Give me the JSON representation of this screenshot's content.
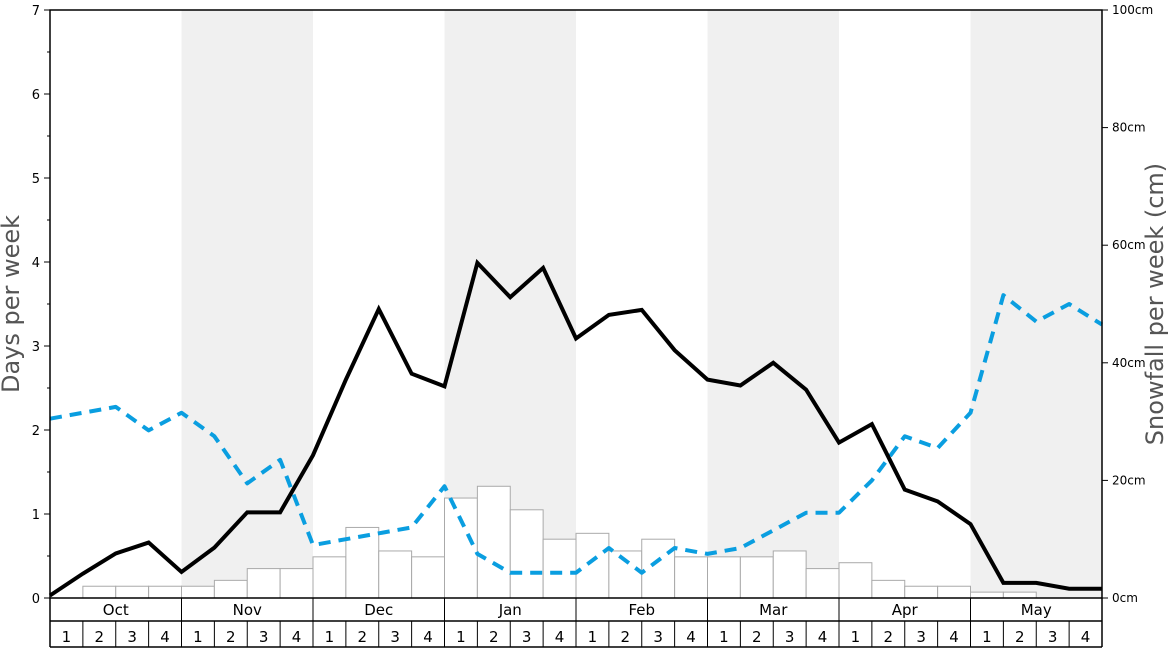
{
  "chart_data": {
    "type": "bar",
    "ylabel_left": "Days per week",
    "ylabel_right": "Snowfall per week (cm)",
    "ylim_left": [
      0,
      7
    ],
    "ylim_right": [
      0,
      100
    ],
    "left_ticks": [
      "0",
      "1",
      "2",
      "3",
      "4",
      "5",
      "6",
      "7"
    ],
    "right_ticks": [
      "0cm",
      "20cm",
      "40cm",
      "60cm",
      "80cm",
      "100cm"
    ],
    "months": [
      "Oct",
      "Nov",
      "Dec",
      "Jan",
      "Feb",
      "Mar",
      "Apr",
      "May"
    ],
    "week_labels": [
      "1",
      "2",
      "3",
      "4"
    ],
    "grid": false,
    "colors": {
      "bar_fill": "#ffffff",
      "bar_stroke": "#aaaaaa",
      "line_days": "#000000",
      "line_dashed": "#0a9ee0",
      "band": "#f0f0f0"
    },
    "series": [
      {
        "type": "bar",
        "axis": "right",
        "values": [
          0,
          2,
          2,
          2,
          2,
          3,
          5,
          5,
          7,
          12,
          8,
          7,
          17,
          19,
          15,
          10,
          11,
          8,
          10,
          7,
          7,
          7,
          8,
          5,
          6,
          3,
          2,
          2,
          1,
          1,
          0,
          0
        ]
      },
      {
        "type": "line",
        "style": "solid",
        "axis": "left",
        "values": [
          0.03,
          0.29,
          0.53,
          0.66,
          0.31,
          0.6,
          1.02,
          1.02,
          1.7,
          2.6,
          3.44,
          2.67,
          2.52,
          3.99,
          3.58,
          3.93,
          3.09,
          3.37,
          3.43,
          2.95,
          2.6,
          2.53,
          2.8,
          2.48,
          1.85,
          2.07,
          1.29,
          1.15,
          0.88,
          0.18,
          0.18,
          0.11,
          0.11
        ]
      },
      {
        "type": "line",
        "style": "dashed",
        "axis": "right",
        "values": [
          30.5,
          31.5,
          32.5,
          28.5,
          31.5,
          27.5,
          19.5,
          23.5,
          9,
          10,
          11,
          12,
          19,
          7.5,
          4.3,
          4.3,
          4.3,
          8.5,
          4.3,
          8.5,
          7.5,
          8.5,
          11.5,
          14.5,
          14.5,
          20,
          27.5,
          25.5,
          31.5,
          51.5,
          47,
          50,
          46.5
        ]
      }
    ]
  }
}
